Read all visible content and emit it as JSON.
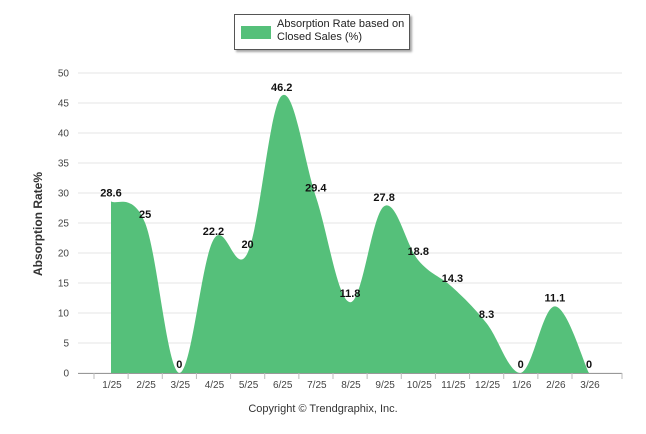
{
  "chart_data": {
    "type": "area",
    "categories": [
      "1/25",
      "2/25",
      "3/25",
      "4/25",
      "5/25",
      "6/25",
      "7/25",
      "8/25",
      "9/25",
      "10/25",
      "11/25",
      "12/25",
      "1/26",
      "2/26",
      "3/26"
    ],
    "series": [
      {
        "name": "Absorption Rate based on Closed Sales (%)",
        "values": [
          28.6,
          25,
          0,
          22.2,
          20,
          46.2,
          29.4,
          11.8,
          27.8,
          18.8,
          14.3,
          8.3,
          0,
          11.1,
          0
        ],
        "color": "#55c07a"
      }
    ],
    "ylabel": "Absorption Rate%",
    "xlabel": "",
    "ylim": [
      0,
      50
    ],
    "yticks": [
      0,
      5,
      10,
      15,
      20,
      25,
      30,
      35,
      40,
      45,
      50
    ],
    "grid": true,
    "data_labels": true,
    "legend": "top-center"
  },
  "legend": {
    "label": "Absorption Rate based on Closed Sales (%)"
  },
  "footer": {
    "credit": "Copyright © Trendgraphix, Inc."
  }
}
